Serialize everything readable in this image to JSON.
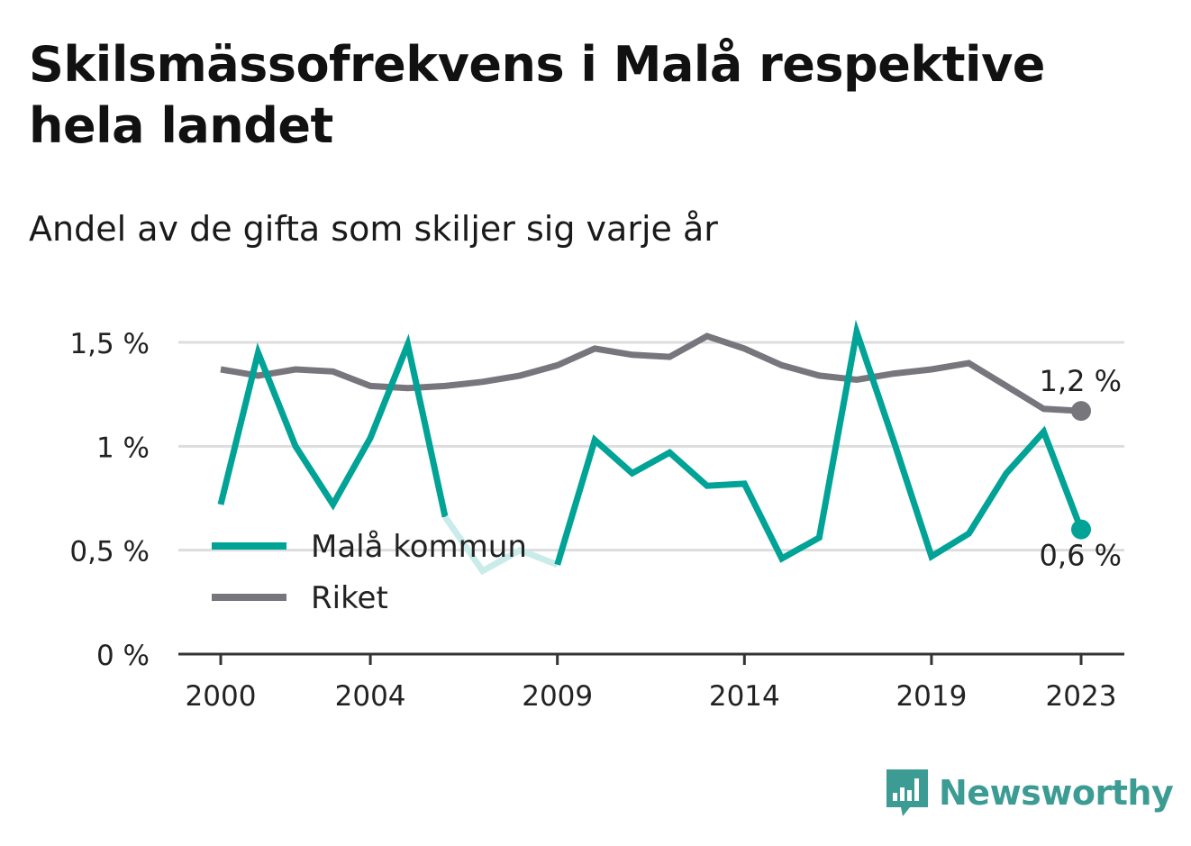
{
  "title": "Skilsmässofrekvens i Malå respektive hela landet",
  "subtitle": "Andel av de gifta som skiljer sig varje år",
  "brand": {
    "name": "Newsworthy",
    "icon": "bar-chart-speech-bubble-icon",
    "color": "#3c9c94"
  },
  "colors": {
    "mala": "#00a396",
    "mala_light": "#c9ecea",
    "riket": "#77767d",
    "grid": "#dddddd",
    "axis": "#333333"
  },
  "chart_data": {
    "type": "line",
    "x": [
      2000,
      2001,
      2002,
      2003,
      2004,
      2005,
      2006,
      2007,
      2008,
      2009,
      2010,
      2011,
      2012,
      2013,
      2014,
      2015,
      2016,
      2017,
      2018,
      2019,
      2020,
      2021,
      2022,
      2023
    ],
    "x_ticks": [
      2000,
      2004,
      2009,
      2014,
      2019,
      2023
    ],
    "x_tick_labels": [
      "2000",
      "2004",
      "2009",
      "2014",
      "2019",
      "2023"
    ],
    "y_ticks": [
      0,
      0.5,
      1,
      1.5
    ],
    "y_tick_labels": [
      "0 %",
      "0,5 %",
      "1 %",
      "1,5 %"
    ],
    "ylim": [
      0,
      1.6
    ],
    "grid": true,
    "legend_position": "bottom-left",
    "series": [
      {
        "name": "Malå kommun",
        "key": "mala",
        "values": [
          0.72,
          1.45,
          1.0,
          0.72,
          1.04,
          1.49,
          0.66,
          0.4,
          0.5,
          0.43,
          1.03,
          0.87,
          0.97,
          0.81,
          0.82,
          0.46,
          0.56,
          1.55,
          1.02,
          0.47,
          0.58,
          0.87,
          1.07,
          0.6
        ],
        "faded_segments": [
          [
            2006,
            2009
          ]
        ],
        "end_label": "0,6 %"
      },
      {
        "name": "Riket",
        "key": "riket",
        "values": [
          1.37,
          1.34,
          1.37,
          1.36,
          1.29,
          1.28,
          1.29,
          1.31,
          1.34,
          1.39,
          1.47,
          1.44,
          1.43,
          1.53,
          1.47,
          1.39,
          1.34,
          1.32,
          1.35,
          1.37,
          1.4,
          1.29,
          1.18,
          1.17
        ],
        "end_label": "1,2 %"
      }
    ]
  }
}
